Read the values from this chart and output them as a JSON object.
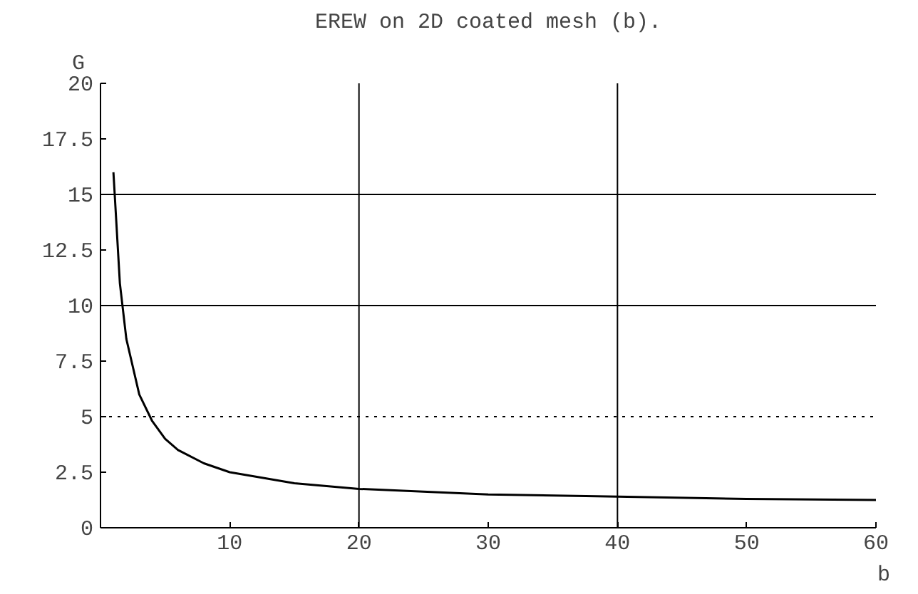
{
  "chart_data": {
    "type": "line",
    "title": "EREW on 2D coated mesh (b).",
    "xlabel": "b",
    "ylabel": "G",
    "x": [
      1,
      1.5,
      2,
      3,
      4,
      5,
      6,
      8,
      10,
      15,
      20,
      30,
      40,
      50,
      60
    ],
    "series": [
      {
        "color": "#000000",
        "values": [
          16,
          11,
          8.5,
          6,
          4.8,
          4,
          3.5,
          2.9,
          2.5,
          2,
          1.75,
          1.5,
          1.4,
          1.3,
          1.25
        ]
      }
    ],
    "xlim": [
      0,
      60
    ],
    "ylim": [
      0,
      20
    ],
    "xticks": [
      {
        "value": 0,
        "label": null
      },
      10,
      20,
      30,
      40,
      50,
      60
    ],
    "yticks": [
      0,
      2.5,
      5,
      7.5,
      10,
      12.5,
      15,
      17.5,
      20
    ],
    "grid": false,
    "marker": "none",
    "line_style": "solid",
    "ref_lines": [
      {
        "axis": "x",
        "value": 20,
        "label": null,
        "color": "#000000",
        "line_style": "solid"
      },
      {
        "axis": "x",
        "value": 40,
        "label": null,
        "color": "#000000",
        "line_style": "solid"
      },
      {
        "axis": "y",
        "value": 5,
        "label": null,
        "color": "#000000",
        "line_style": "dotted"
      },
      {
        "axis": "y",
        "value": 10,
        "label": null,
        "color": "#000000",
        "line_style": "solid"
      },
      {
        "axis": "y",
        "value": 15,
        "label": null,
        "color": "#000000",
        "line_style": "solid"
      }
    ]
  }
}
